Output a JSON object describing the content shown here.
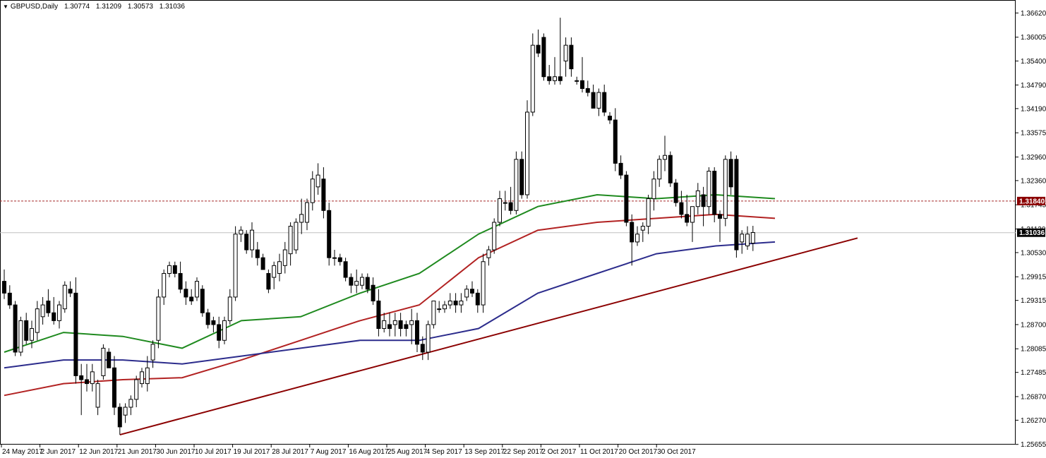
{
  "chart_header": {
    "symbol": "GBPUSD,Daily",
    "open": "1.30774",
    "high": "1.31209",
    "low": "1.30573",
    "close": "1.31036"
  },
  "colors": {
    "background": "#ffffff",
    "bull_candle": "#ffffff",
    "bear_candle": "#000000",
    "ma_green": "#1f8a1f",
    "ma_red": "#b22222",
    "ma_blue": "#2c2c8c",
    "trendline": "#8b0000",
    "level_line": "#a52a2a",
    "price_line": "#c0c0c0",
    "level_label_bg": "#8b0000",
    "price_label_bg": "#000000"
  },
  "chart_data": {
    "type": "candlestick",
    "symbol": "GBPUSD",
    "timeframe": "Daily",
    "ylim": [
      1.2565,
      1.3695
    ],
    "y_ticks": [
      "1.36620",
      "1.36005",
      "1.35400",
      "1.34790",
      "1.34190",
      "1.33575",
      "1.32960",
      "1.32360",
      "1.31745",
      "1.31130",
      "1.30530",
      "1.29915",
      "1.29315",
      "1.28700",
      "1.28085",
      "1.27485",
      "1.26870",
      "1.26270",
      "1.25655"
    ],
    "x_ticks": [
      "24 May 2017",
      "2 Jun 2017",
      "12 Jun 2017",
      "21 Jun 2017",
      "30 Jun 2017",
      "10 Jul 2017",
      "19 Jul 2017",
      "28 Jul 2017",
      "7 Aug 2017",
      "16 Aug 2017",
      "25 Aug 2017",
      "4 Sep 2017",
      "13 Sep 2017",
      "22 Sep 2017",
      "2 Oct 2017",
      "11 Oct 2017",
      "20 Oct 2017",
      "30 Oct 2017"
    ],
    "x_tick_bar_index": [
      0,
      7,
      14,
      21,
      28,
      35,
      42,
      49,
      56,
      63,
      70,
      77,
      84,
      91,
      98,
      105,
      112,
      119
    ],
    "ohlc": [
      [
        1.298,
        1.301,
        1.2935,
        1.295
      ],
      [
        1.295,
        1.297,
        1.291,
        1.292
      ],
      [
        1.292,
        1.293,
        1.279,
        1.28
      ],
      [
        1.28,
        1.289,
        1.279,
        1.288
      ],
      [
        1.288,
        1.29,
        1.282,
        1.283
      ],
      [
        1.283,
        1.288,
        1.281,
        1.286
      ],
      [
        1.285,
        1.293,
        1.283,
        1.291
      ],
      [
        1.289,
        1.294,
        1.287,
        1.292
      ],
      [
        1.293,
        1.296,
        1.289,
        1.29
      ],
      [
        1.29,
        1.294,
        1.287,
        1.288
      ],
      [
        1.288,
        1.293,
        1.286,
        1.292
      ],
      [
        1.291,
        1.298,
        1.29,
        1.297
      ],
      [
        1.296,
        1.298,
        1.294,
        1.295
      ],
      [
        1.295,
        1.299,
        1.272,
        1.274
      ],
      [
        1.274,
        1.277,
        1.264,
        1.273
      ],
      [
        1.273,
        1.277,
        1.27,
        1.272
      ],
      [
        1.272,
        1.277,
        1.27,
        1.275
      ],
      [
        1.266,
        1.273,
        1.264,
        1.272
      ],
      [
        1.274,
        1.282,
        1.273,
        1.281
      ],
      [
        1.28,
        1.281,
        1.276,
        1.276
      ],
      [
        1.276,
        1.279,
        1.264,
        1.266
      ],
      [
        1.266,
        1.267,
        1.259,
        1.261
      ],
      [
        1.264,
        1.267,
        1.262,
        1.266
      ],
      [
        1.266,
        1.269,
        1.264,
        1.268
      ],
      [
        1.268,
        1.274,
        1.266,
        1.273
      ],
      [
        1.272,
        1.276,
        1.271,
        1.275
      ],
      [
        1.272,
        1.279,
        1.27,
        1.276
      ],
      [
        1.278,
        1.283,
        1.276,
        1.282
      ],
      [
        1.283,
        1.296,
        1.281,
        1.294
      ],
      [
        1.294,
        1.301,
        1.292,
        1.3
      ],
      [
        1.3,
        1.303,
        1.299,
        1.302
      ],
      [
        1.302,
        1.303,
        1.299,
        1.3
      ],
      [
        1.3,
        1.303,
        1.295,
        1.296
      ],
      [
        1.296,
        1.298,
        1.292,
        1.294
      ],
      [
        1.294,
        1.296,
        1.292,
        1.293
      ],
      [
        1.294,
        1.299,
        1.293,
        1.298
      ],
      [
        1.296,
        1.297,
        1.289,
        1.29
      ],
      [
        1.29,
        1.291,
        1.286,
        1.287
      ],
      [
        1.288,
        1.289,
        1.285,
        1.287
      ],
      [
        1.287,
        1.289,
        1.281,
        1.283
      ],
      [
        1.283,
        1.289,
        1.282,
        1.288
      ],
      [
        1.288,
        1.296,
        1.287,
        1.294
      ],
      [
        1.294,
        1.312,
        1.293,
        1.31
      ],
      [
        1.31,
        1.312,
        1.308,
        1.311
      ],
      [
        1.31,
        1.311,
        1.305,
        1.306
      ],
      [
        1.306,
        1.313,
        1.304,
        1.311
      ],
      [
        1.306,
        1.308,
        1.302,
        1.304
      ],
      [
        1.304,
        1.305,
        1.301,
        1.301
      ],
      [
        1.3,
        1.301,
        1.295,
        1.296
      ],
      [
        1.299,
        1.303,
        1.296,
        1.302
      ],
      [
        1.3,
        1.305,
        1.298,
        1.303
      ],
      [
        1.302,
        1.308,
        1.3,
        1.306
      ],
      [
        1.305,
        1.313,
        1.302,
        1.312
      ],
      [
        1.306,
        1.314,
        1.305,
        1.313
      ],
      [
        1.313,
        1.319,
        1.31,
        1.315
      ],
      [
        1.313,
        1.319,
        1.311,
        1.318
      ],
      [
        1.318,
        1.326,
        1.316,
        1.324
      ],
      [
        1.322,
        1.328,
        1.32,
        1.325
      ],
      [
        1.324,
        1.327,
        1.314,
        1.316
      ],
      [
        1.316,
        1.318,
        1.302,
        1.304
      ],
      [
        1.304,
        1.306,
        1.302,
        1.304
      ],
      [
        1.304,
        1.305,
        1.302,
        1.303
      ],
      [
        1.303,
        1.304,
        1.298,
        1.299
      ],
      [
        1.299,
        1.3,
        1.295,
        1.297
      ],
      [
        1.297,
        1.301,
        1.295,
        1.298
      ],
      [
        1.297,
        1.3,
        1.296,
        1.299
      ],
      [
        1.299,
        1.3,
        1.295,
        1.296
      ],
      [
        1.297,
        1.299,
        1.292,
        1.293
      ],
      [
        1.293,
        1.296,
        1.284,
        1.286
      ],
      [
        1.286,
        1.29,
        1.285,
        1.288
      ],
      [
        1.287,
        1.29,
        1.284,
        1.286
      ],
      [
        1.287,
        1.29,
        1.284,
        1.288
      ],
      [
        1.288,
        1.29,
        1.284,
        1.286
      ],
      [
        1.287,
        1.288,
        1.284,
        1.286
      ],
      [
        1.287,
        1.291,
        1.282,
        1.288
      ],
      [
        1.288,
        1.29,
        1.28,
        1.282
      ],
      [
        1.282,
        1.284,
        1.278,
        1.28
      ],
      [
        1.28,
        1.288,
        1.278,
        1.287
      ],
      [
        1.287,
        1.293,
        1.286,
        1.293
      ],
      [
        1.291,
        1.293,
        1.29,
        1.291
      ],
      [
        1.291,
        1.293,
        1.29,
        1.292
      ],
      [
        1.292,
        1.295,
        1.291,
        1.293
      ],
      [
        1.293,
        1.295,
        1.29,
        1.292
      ],
      [
        1.292,
        1.295,
        1.29,
        1.293
      ],
      [
        1.294,
        1.297,
        1.293,
        1.296
      ],
      [
        1.296,
        1.298,
        1.294,
        1.295
      ],
      [
        1.295,
        1.296,
        1.29,
        1.292
      ],
      [
        1.292,
        1.305,
        1.29,
        1.303
      ],
      [
        1.304,
        1.307,
        1.302,
        1.306
      ],
      [
        1.306,
        1.314,
        1.305,
        1.313
      ],
      [
        1.313,
        1.321,
        1.312,
        1.319
      ],
      [
        1.318,
        1.321,
        1.316,
        1.318
      ],
      [
        1.318,
        1.322,
        1.315,
        1.316
      ],
      [
        1.316,
        1.331,
        1.315,
        1.329
      ],
      [
        1.329,
        1.331,
        1.319,
        1.32
      ],
      [
        1.32,
        1.344,
        1.319,
        1.341
      ],
      [
        1.341,
        1.361,
        1.34,
        1.358
      ],
      [
        1.358,
        1.362,
        1.355,
        1.356
      ],
      [
        1.36,
        1.361,
        1.349,
        1.35
      ],
      [
        1.35,
        1.353,
        1.348,
        1.349
      ],
      [
        1.349,
        1.355,
        1.348,
        1.35
      ],
      [
        1.35,
        1.365,
        1.348,
        1.349
      ],
      [
        1.354,
        1.36,
        1.35,
        1.358
      ],
      [
        1.358,
        1.36,
        1.35,
        1.352
      ],
      [
        1.349,
        1.35,
        1.348,
        1.349
      ],
      [
        1.349,
        1.355,
        1.346,
        1.347
      ],
      [
        1.347,
        1.349,
        1.345,
        1.346
      ],
      [
        1.346,
        1.348,
        1.342,
        1.342
      ],
      [
        1.342,
        1.347,
        1.34,
        1.346
      ],
      [
        1.346,
        1.348,
        1.34,
        1.341
      ],
      [
        1.34,
        1.341,
        1.338,
        1.339
      ],
      [
        1.339,
        1.342,
        1.326,
        1.328
      ],
      [
        1.328,
        1.33,
        1.324,
        1.325
      ],
      [
        1.325,
        1.326,
        1.312,
        1.313
      ],
      [
        1.313,
        1.315,
        1.302,
        1.308
      ],
      [
        1.308,
        1.312,
        1.307,
        1.31
      ],
      [
        1.311,
        1.313,
        1.308,
        1.312
      ],
      [
        1.312,
        1.32,
        1.31,
        1.319
      ],
      [
        1.319,
        1.326,
        1.316,
        1.324
      ],
      [
        1.324,
        1.33,
        1.322,
        1.329
      ],
      [
        1.329,
        1.335,
        1.326,
        1.33
      ],
      [
        1.33,
        1.331,
        1.322,
        1.323
      ],
      [
        1.323,
        1.324,
        1.317,
        1.318
      ],
      [
        1.318,
        1.321,
        1.314,
        1.315
      ],
      [
        1.315,
        1.32,
        1.312,
        1.313
      ],
      [
        1.313,
        1.316,
        1.308,
        1.317
      ],
      [
        1.317,
        1.323,
        1.315,
        1.321
      ],
      [
        1.32,
        1.322,
        1.312,
        1.317
      ],
      [
        1.317,
        1.327,
        1.315,
        1.326
      ],
      [
        1.326,
        1.327,
        1.313,
        1.315
      ],
      [
        1.315,
        1.316,
        1.308,
        1.314
      ],
      [
        1.314,
        1.33,
        1.312,
        1.329
      ],
      [
        1.329,
        1.331,
        1.32,
        1.322
      ],
      [
        1.329,
        1.33,
        1.304,
        1.306
      ],
      [
        1.308,
        1.311,
        1.305,
        1.31
      ],
      [
        1.307,
        1.312,
        1.306,
        1.31
      ],
      [
        1.3077,
        1.3121,
        1.3057,
        1.3104
      ]
    ],
    "moving_averages": [
      {
        "color": "green",
        "values": [
          1.28,
          1.285,
          1.284,
          1.281,
          1.288,
          1.289,
          1.295,
          1.3,
          1.31,
          1.317,
          1.32,
          1.319,
          1.32,
          1.319
        ]
      },
      {
        "color": "red",
        "values": [
          1.269,
          1.272,
          1.273,
          1.2735,
          1.278,
          1.283,
          1.288,
          1.292,
          1.304,
          1.311,
          1.313,
          1.314,
          1.315,
          1.314
        ]
      },
      {
        "color": "blue",
        "values": [
          1.276,
          1.278,
          1.278,
          1.277,
          1.279,
          1.281,
          1.283,
          1.283,
          1.286,
          1.295,
          1.3,
          1.305,
          1.307,
          1.308
        ]
      }
    ],
    "trendline": {
      "from": [
        21,
        1.259
      ],
      "to": [
        155,
        1.309
      ]
    },
    "horizontal_level": 1.3184,
    "current_price": 1.31036,
    "level_label": "1.31840",
    "current_label": "1.31036"
  }
}
